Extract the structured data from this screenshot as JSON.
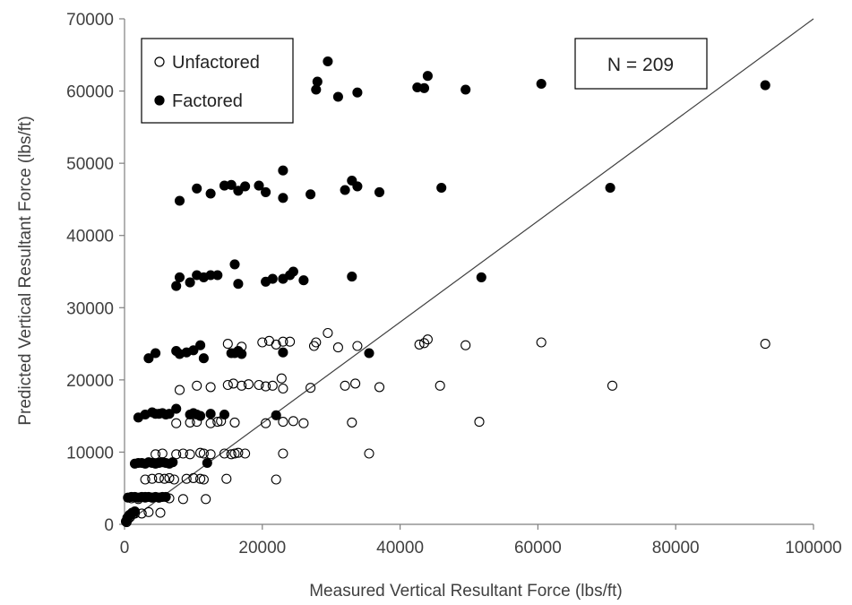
{
  "chart_data": {
    "type": "scatter",
    "title": "",
    "xlabel": "Measured Vertical Resultant Force (lbs/ft)",
    "ylabel": "Predicted Vertical Resultant Force (lbs/ft)",
    "xlim": [
      0,
      100000
    ],
    "ylim": [
      0,
      70000
    ],
    "xticks": [
      0,
      20000,
      40000,
      60000,
      80000,
      100000
    ],
    "yticks": [
      0,
      10000,
      20000,
      30000,
      40000,
      50000,
      60000,
      70000
    ],
    "xtick_labels": [
      "0",
      "20000",
      "40000",
      "60000",
      "80000",
      "100000"
    ],
    "ytick_labels": [
      "0",
      "10000",
      "20000",
      "30000",
      "40000",
      "50000",
      "60000",
      "70000"
    ],
    "grid": false,
    "legend_position": "top-left",
    "annotation": "N = 209",
    "reference_line": {
      "from": [
        0,
        0
      ],
      "to": [
        100000,
        70000
      ]
    },
    "colors": {
      "axis": "#7f7f7f",
      "marker": "#000000",
      "line": "#404040"
    },
    "series": [
      {
        "name": "Unfactored",
        "marker": "open-circle",
        "points": [
          [
            300,
            300
          ],
          [
            500,
            700
          ],
          [
            800,
            1000
          ],
          [
            1200,
            1400
          ],
          [
            1500,
            1500
          ],
          [
            2500,
            1500
          ],
          [
            3500,
            1700
          ],
          [
            5200,
            1600
          ],
          [
            1000,
            3600
          ],
          [
            2000,
            3500
          ],
          [
            3000,
            3800
          ],
          [
            4000,
            3700
          ],
          [
            5000,
            3700
          ],
          [
            6500,
            3600
          ],
          [
            8500,
            3500
          ],
          [
            11800,
            3500
          ],
          [
            3000,
            6200
          ],
          [
            4000,
            6300
          ],
          [
            5000,
            6400
          ],
          [
            5800,
            6300
          ],
          [
            6500,
            6400
          ],
          [
            7200,
            6200
          ],
          [
            9000,
            6300
          ],
          [
            10000,
            6400
          ],
          [
            11000,
            6300
          ],
          [
            11500,
            6200
          ],
          [
            14800,
            6300
          ],
          [
            22000,
            6200
          ],
          [
            4500,
            9700
          ],
          [
            5500,
            9800
          ],
          [
            7500,
            9700
          ],
          [
            8500,
            9800
          ],
          [
            9500,
            9700
          ],
          [
            11000,
            9900
          ],
          [
            11500,
            9800
          ],
          [
            12500,
            9700
          ],
          [
            14500,
            9800
          ],
          [
            15500,
            9700
          ],
          [
            16000,
            9800
          ],
          [
            16500,
            9900
          ],
          [
            17500,
            9800
          ],
          [
            23000,
            9800
          ],
          [
            35500,
            9800
          ],
          [
            7500,
            14000
          ],
          [
            9500,
            14100
          ],
          [
            10500,
            14200
          ],
          [
            12500,
            14000
          ],
          [
            13500,
            14200
          ],
          [
            14000,
            14300
          ],
          [
            16000,
            14100
          ],
          [
            20500,
            14000
          ],
          [
            23000,
            14200
          ],
          [
            24500,
            14300
          ],
          [
            26000,
            14000
          ],
          [
            33000,
            14100
          ],
          [
            51500,
            14200
          ],
          [
            8000,
            18600
          ],
          [
            10500,
            19200
          ],
          [
            12500,
            19000
          ],
          [
            15000,
            19300
          ],
          [
            15800,
            19500
          ],
          [
            17000,
            19200
          ],
          [
            18000,
            19400
          ],
          [
            19500,
            19300
          ],
          [
            20500,
            19100
          ],
          [
            21500,
            19200
          ],
          [
            22800,
            20200
          ],
          [
            23000,
            18800
          ],
          [
            27000,
            18900
          ],
          [
            32000,
            19200
          ],
          [
            33500,
            19500
          ],
          [
            37000,
            19000
          ],
          [
            45800,
            19200
          ],
          [
            70800,
            19200
          ],
          [
            15000,
            25000
          ],
          [
            17000,
            24600
          ],
          [
            20000,
            25200
          ],
          [
            21000,
            25400
          ],
          [
            22000,
            24900
          ],
          [
            23000,
            25300
          ],
          [
            24000,
            25300
          ],
          [
            27500,
            24700
          ],
          [
            27800,
            25200
          ],
          [
            29500,
            26500
          ],
          [
            31000,
            24500
          ],
          [
            33800,
            24700
          ],
          [
            42800,
            24900
          ],
          [
            44000,
            25600
          ],
          [
            43500,
            25100
          ],
          [
            49500,
            24800
          ],
          [
            60500,
            25200
          ],
          [
            93000,
            25000
          ]
        ]
      },
      {
        "name": "Factored",
        "marker": "filled-circle",
        "points": [
          [
            200,
            400
          ],
          [
            400,
            900
          ],
          [
            700,
            1300
          ],
          [
            1100,
            1600
          ],
          [
            1500,
            1800
          ],
          [
            500,
            3700
          ],
          [
            1000,
            3800
          ],
          [
            1500,
            3800
          ],
          [
            2000,
            3700
          ],
          [
            2500,
            3800
          ],
          [
            3000,
            3700
          ],
          [
            3500,
            3800
          ],
          [
            4000,
            3700
          ],
          [
            4500,
            3800
          ],
          [
            5000,
            3700
          ],
          [
            5500,
            3800
          ],
          [
            6000,
            3800
          ],
          [
            1500,
            8400
          ],
          [
            2000,
            8500
          ],
          [
            2500,
            8500
          ],
          [
            3000,
            8400
          ],
          [
            3500,
            8600
          ],
          [
            4000,
            8500
          ],
          [
            4500,
            8400
          ],
          [
            5000,
            8500
          ],
          [
            5500,
            8600
          ],
          [
            6000,
            8500
          ],
          [
            6500,
            8400
          ],
          [
            7000,
            8600
          ],
          [
            12000,
            8500
          ],
          [
            2000,
            14800
          ],
          [
            3000,
            15200
          ],
          [
            4000,
            15500
          ],
          [
            4500,
            15300
          ],
          [
            5000,
            15300
          ],
          [
            5500,
            15400
          ],
          [
            6000,
            15200
          ],
          [
            6500,
            15300
          ],
          [
            7500,
            16000
          ],
          [
            9500,
            15200
          ],
          [
            10000,
            15400
          ],
          [
            10500,
            15200
          ],
          [
            11000,
            15000
          ],
          [
            12500,
            15300
          ],
          [
            14500,
            15200
          ],
          [
            22000,
            15100
          ],
          [
            3500,
            23000
          ],
          [
            4500,
            23700
          ],
          [
            7500,
            24000
          ],
          [
            8000,
            23600
          ],
          [
            9000,
            23800
          ],
          [
            10000,
            24100
          ],
          [
            11000,
            24800
          ],
          [
            11500,
            23000
          ],
          [
            15500,
            23700
          ],
          [
            16000,
            23700
          ],
          [
            16500,
            24000
          ],
          [
            17000,
            23600
          ],
          [
            23000,
            23800
          ],
          [
            35500,
            23700
          ],
          [
            7500,
            33000
          ],
          [
            8000,
            34200
          ],
          [
            9500,
            33500
          ],
          [
            10500,
            34500
          ],
          [
            11500,
            34200
          ],
          [
            12500,
            34500
          ],
          [
            13500,
            34500
          ],
          [
            16000,
            36000
          ],
          [
            16500,
            33300
          ],
          [
            20500,
            33600
          ],
          [
            21500,
            34000
          ],
          [
            23000,
            34000
          ],
          [
            24000,
            34500
          ],
          [
            24500,
            35000
          ],
          [
            26000,
            33800
          ],
          [
            33000,
            34300
          ],
          [
            51800,
            34200
          ],
          [
            8000,
            44800
          ],
          [
            10500,
            46500
          ],
          [
            12500,
            45800
          ],
          [
            14500,
            46900
          ],
          [
            15500,
            47000
          ],
          [
            16500,
            46200
          ],
          [
            17500,
            46800
          ],
          [
            19500,
            46900
          ],
          [
            20500,
            46000
          ],
          [
            23000,
            49000
          ],
          [
            23000,
            45200
          ],
          [
            27000,
            45700
          ],
          [
            32000,
            46300
          ],
          [
            33000,
            47600
          ],
          [
            33800,
            46800
          ],
          [
            37000,
            46000
          ],
          [
            46000,
            46600
          ],
          [
            70500,
            46600
          ],
          [
            22500,
            61500
          ],
          [
            27800,
            60200
          ],
          [
            28000,
            61300
          ],
          [
            29500,
            64100
          ],
          [
            31000,
            59200
          ],
          [
            33800,
            59800
          ],
          [
            42500,
            60500
          ],
          [
            43500,
            60400
          ],
          [
            44000,
            62100
          ],
          [
            49500,
            60200
          ],
          [
            60500,
            61000
          ],
          [
            93000,
            60800
          ]
        ]
      }
    ]
  }
}
